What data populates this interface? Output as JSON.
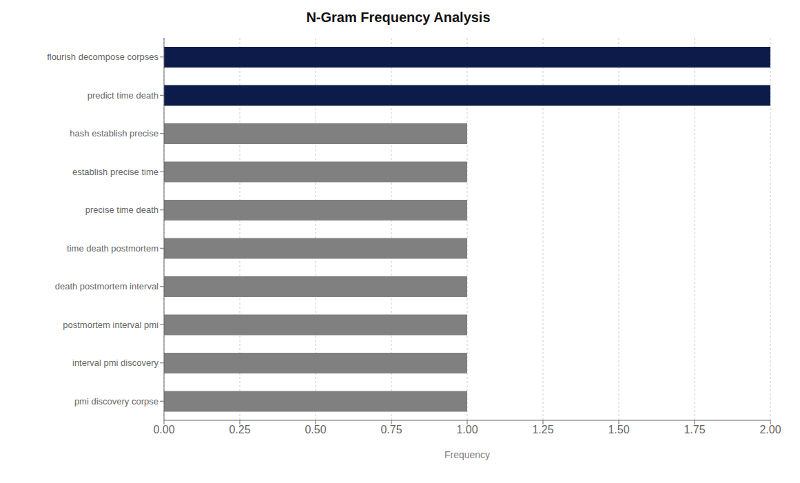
{
  "chart_data": {
    "type": "bar",
    "orientation": "horizontal",
    "title": "N-Gram Frequency Analysis",
    "xlabel": "Frequency",
    "categories": [
      "pmi discovery corpse",
      "interval pmi discovery",
      "postmortem interval pmi",
      "death postmortem interval",
      "time death postmortem",
      "precise time death",
      "establish precise time",
      "hash establish precise",
      "predict time death",
      "flourish decompose corpses"
    ],
    "values": [
      1,
      1,
      1,
      1,
      1,
      1,
      1,
      1,
      2,
      2
    ],
    "colors": [
      "#808080",
      "#808080",
      "#808080",
      "#808080",
      "#808080",
      "#808080",
      "#808080",
      "#808080",
      "#0d1b4b",
      "#0d1b4b"
    ],
    "xlim": [
      0,
      2.0
    ],
    "xticks": [
      {
        "value": 0,
        "label": "0.00"
      },
      0.25,
      {
        "value": 0.5,
        "label": "0.50"
      },
      0.75,
      {
        "value": 1,
        "label": "1.00"
      },
      1.25,
      {
        "value": 1.5,
        "label": "1.50"
      },
      1.75,
      {
        "value": 2,
        "label": "2.00"
      }
    ],
    "grid": true
  }
}
